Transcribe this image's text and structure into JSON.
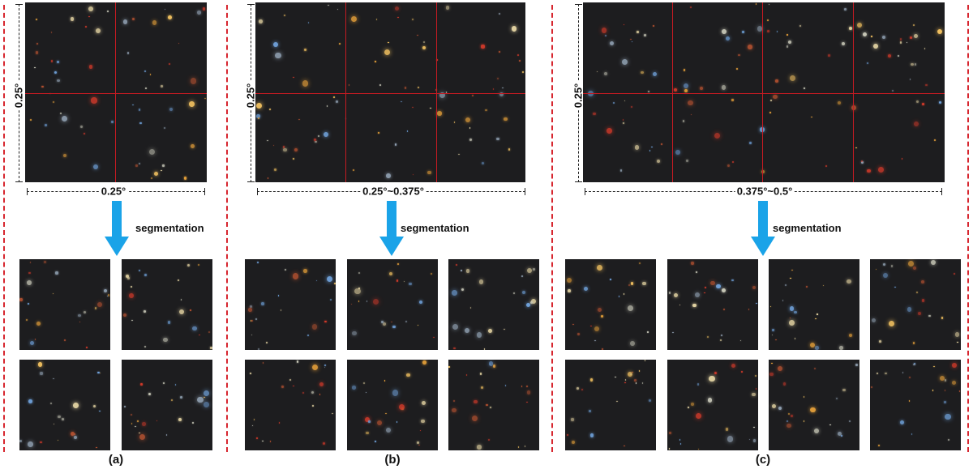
{
  "panels": [
    {
      "id": "a",
      "label": "(a)",
      "height_label": "0.25°",
      "width_label": "0.25°",
      "arrow_label": "segmentation",
      "tile_count": 4
    },
    {
      "id": "b",
      "label": "(b)",
      "height_label": "0.25°",
      "width_label": "0.25°~0.375°",
      "arrow_label": "segmentation",
      "tile_count": 6
    },
    {
      "id": "c",
      "label": "(c)",
      "height_label": "0.25°",
      "width_label": "0.375°~0.5°",
      "arrow_label": "segmentation",
      "tile_count": 8
    }
  ],
  "colors": {
    "separator": "#d7262f",
    "grid_line": "#c41b22",
    "arrow": "#1aa3e8",
    "sky_background": "#1d1d1f"
  }
}
